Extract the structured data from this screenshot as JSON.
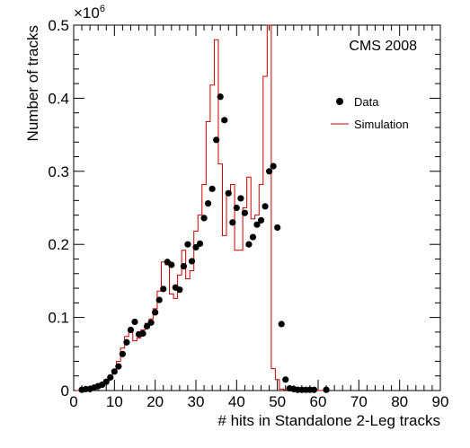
{
  "chart_data": {
    "type": "scatter",
    "title": "",
    "annotation": "CMS 2008",
    "xlabel": "# hits in  Standalone 2-Leg  tracks",
    "ylabel": "Number of tracks",
    "y_multiplier": "×10",
    "y_multiplier_exp": "6",
    "xlim": [
      0,
      90
    ],
    "ylim": [
      0,
      0.5
    ],
    "x_ticks": [
      0,
      10,
      20,
      30,
      40,
      50,
      60,
      70,
      80,
      90
    ],
    "y_ticks": [
      0,
      0.1,
      0.2,
      0.3,
      0.4,
      0.5
    ],
    "x_tick_labels": [
      "0",
      "10",
      "20",
      "30",
      "40",
      "50",
      "60",
      "70",
      "80",
      "90"
    ],
    "y_tick_labels": [
      "0",
      "0.1",
      "0.2",
      "0.3",
      "0.4",
      "0.5"
    ],
    "legend": {
      "placement": "top-right",
      "entries": [
        {
          "label": "Data",
          "style": "marker"
        },
        {
          "label": "Simulation",
          "style": "line"
        }
      ]
    },
    "colors": {
      "data": "#000000",
      "simulation": "#cc0000"
    },
    "series": [
      {
        "name": "Data",
        "style": "marker",
        "x": [
          2,
          3,
          4,
          5,
          6,
          7,
          8,
          9,
          10,
          11,
          12,
          13,
          14,
          15,
          16,
          17,
          18,
          19,
          20,
          21,
          22,
          23,
          24,
          25,
          26,
          27,
          28,
          29,
          30,
          31,
          32,
          33,
          34,
          35,
          36,
          37,
          38,
          39,
          40,
          41,
          42,
          43,
          44,
          45,
          46,
          47,
          48,
          49,
          50,
          51,
          52,
          53,
          54,
          55,
          56,
          57,
          58,
          59,
          62
        ],
        "y": [
          0.001,
          0.002,
          0.002,
          0.004,
          0.006,
          0.008,
          0.012,
          0.018,
          0.026,
          0.033,
          0.05,
          0.066,
          0.083,
          0.094,
          0.077,
          0.078,
          0.088,
          0.093,
          0.107,
          0.124,
          0.139,
          0.176,
          0.172,
          0.141,
          0.138,
          0.17,
          0.2,
          0.177,
          0.196,
          0.201,
          0.236,
          0.256,
          0.276,
          0.343,
          0.402,
          0.37,
          0.27,
          0.23,
          0.25,
          0.263,
          0.243,
          0.2,
          0.21,
          0.227,
          0.233,
          0.252,
          0.3,
          0.307,
          0.223,
          0.091,
          0.015,
          0.003,
          0.002,
          0.001,
          0.001,
          0.001,
          0.001,
          0.001,
          0.001
        ]
      },
      {
        "name": "Simulation",
        "style": "step",
        "bin_width": 1,
        "x": [
          1,
          2,
          3,
          4,
          5,
          6,
          7,
          8,
          9,
          10,
          11,
          12,
          13,
          14,
          15,
          16,
          17,
          18,
          19,
          20,
          21,
          22,
          23,
          24,
          25,
          26,
          27,
          28,
          29,
          30,
          31,
          32,
          33,
          34,
          35,
          36,
          37,
          38,
          39,
          40,
          41,
          42,
          43,
          44,
          45,
          46,
          47,
          48,
          49,
          50,
          51,
          52,
          53,
          54,
          55,
          56,
          57,
          58,
          59,
          60,
          61,
          62
        ],
        "y": [
          0,
          0.001,
          0.001,
          0.002,
          0.003,
          0.005,
          0.007,
          0.01,
          0.017,
          0.024,
          0.04,
          0.058,
          0.074,
          0.083,
          0.068,
          0.072,
          0.083,
          0.092,
          0.098,
          0.112,
          0.136,
          0.176,
          0.172,
          0.132,
          0.126,
          0.158,
          0.192,
          0.153,
          0.164,
          0.218,
          0.24,
          0.282,
          0.368,
          0.418,
          0.48,
          0.31,
          0.212,
          0.272,
          0.282,
          0.192,
          0.192,
          0.25,
          0.292,
          0.235,
          0.24,
          0.282,
          0.43,
          0.5,
          0.03,
          0.015,
          0.002,
          0.001,
          0.001,
          0,
          0,
          0,
          0,
          0,
          0,
          0,
          0,
          0
        ]
      }
    ]
  }
}
